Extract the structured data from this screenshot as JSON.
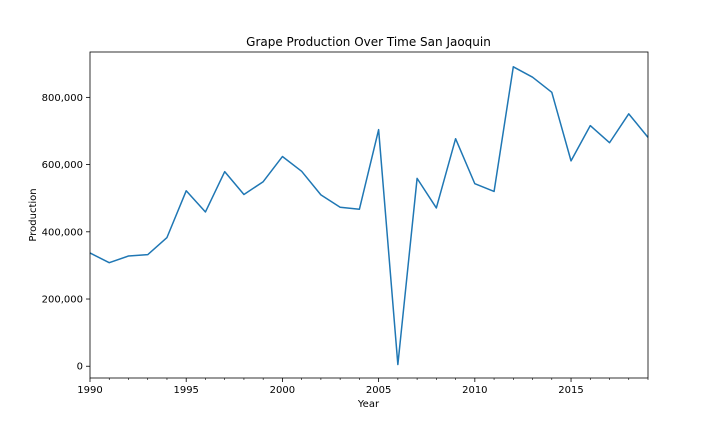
{
  "chart_data": {
    "type": "line",
    "title": "Grape Production Over Time San Jaoquin",
    "xlabel": "Year",
    "ylabel": "Production",
    "xlim": [
      1990,
      2019
    ],
    "ylim": [
      -35000,
      935000
    ],
    "x_ticks": [
      1990,
      1995,
      2000,
      2005,
      2010,
      2015
    ],
    "x_tick_labels": [
      "1990",
      "1995",
      "2000",
      "2005",
      "2010",
      "2015"
    ],
    "y_ticks": [
      0,
      200000,
      400000,
      600000,
      800000
    ],
    "y_tick_labels": [
      "0",
      "200,000",
      "400,000",
      "600,000",
      "800,000"
    ],
    "grid": false,
    "line_color": "#1f77b4",
    "series": [
      {
        "x": [
          1990,
          1991,
          1992,
          1993,
          1994,
          1995,
          1996,
          1997,
          1998,
          1999,
          2000,
          2001,
          2002,
          2003,
          2004,
          2005,
          2006,
          2007,
          2008,
          2009,
          2010,
          2011,
          2012,
          2013,
          2014,
          2015,
          2016,
          2017,
          2018,
          2019
        ],
        "values": [
          337000,
          308000,
          328000,
          332000,
          383000,
          522000,
          459000,
          579000,
          511000,
          549000,
          624000,
          580000,
          510000,
          473000,
          467000,
          704000,
          5000,
          559000,
          471000,
          677000,
          543000,
          520000,
          891000,
          860000,
          815000,
          611000,
          716000,
          665000,
          751000,
          681000
        ]
      }
    ]
  }
}
